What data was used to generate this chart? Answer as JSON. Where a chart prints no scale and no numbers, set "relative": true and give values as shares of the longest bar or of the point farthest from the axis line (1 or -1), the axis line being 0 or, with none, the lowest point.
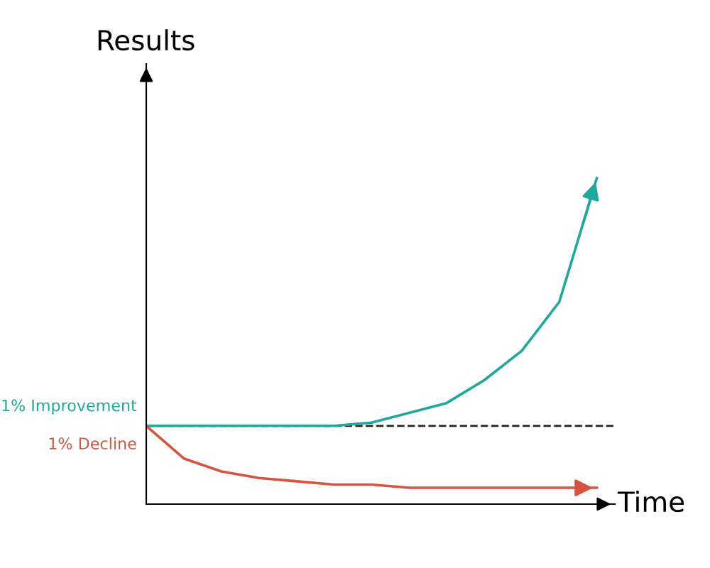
{
  "chart_data": {
    "type": "line",
    "relative": true,
    "xlabel": "Time",
    "ylabel": "Results",
    "categories": [
      null,
      null,
      null,
      null,
      null,
      null,
      null,
      null,
      null,
      null,
      null,
      null,
      null
    ],
    "series": [
      {
        "name": "1% Improvement",
        "color": "#1fa89b",
        "values": [
          0.24,
          0.24,
          0.24,
          0.24,
          0.24,
          0.24,
          0.25,
          0.28,
          0.31,
          0.38,
          0.47,
          0.62,
          1
        ]
      },
      {
        "name": "1% Decline",
        "color": "#d65440",
        "values": [
          0.24,
          0.14,
          0.1,
          0.08,
          0.07,
          0.06,
          0.06,
          0.05,
          0.05,
          0.05,
          0.05,
          0.05,
          0.05
        ]
      }
    ],
    "ref_lines": [
      {
        "axis": "y",
        "value": 0.24,
        "color": "#222222",
        "line_style": "dashed"
      }
    ],
    "legend": false,
    "marker": "none",
    "line_style": "solid"
  }
}
